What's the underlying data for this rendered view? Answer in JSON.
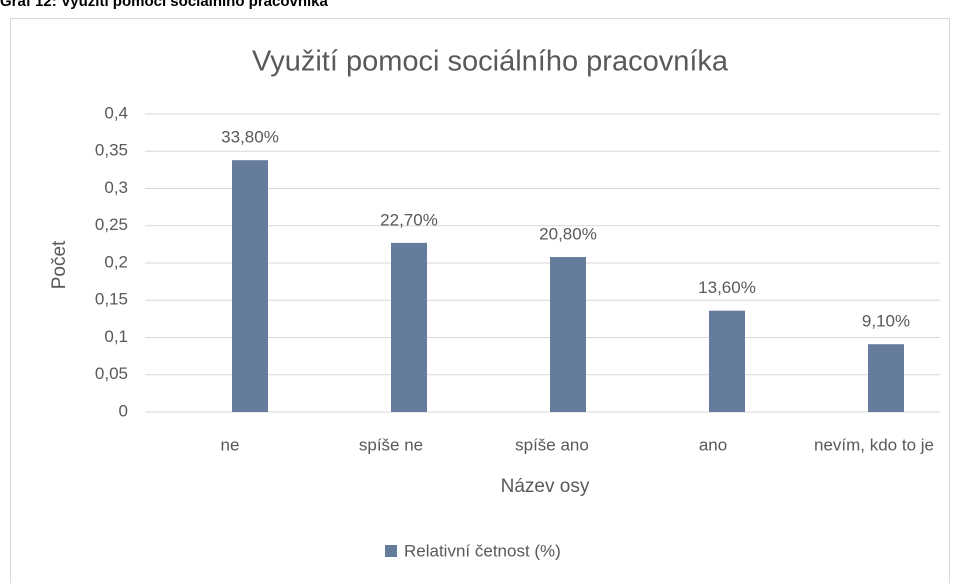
{
  "caption": "Graf 12: Využití pomoci sociálního pracovníka",
  "chart_data": {
    "type": "bar",
    "title": "Využití pomoci sociálního pracovníka",
    "x_label": "Název osy",
    "y_label": "Počet",
    "categories": [
      "ne",
      "spíše ne",
      "spíše ano",
      "ano",
      "nevím, kdo to je"
    ],
    "series": [
      {
        "name": "Relativní četnost (%)",
        "color": "#657c9c",
        "values": [
          0.338,
          0.227,
          0.208,
          0.136,
          0.091
        ],
        "value_labels": [
          "33,80%",
          "22,70%",
          "20,80%",
          "13,60%",
          "9,10%"
        ]
      }
    ],
    "ylim": [
      0,
      0.4
    ],
    "yticks": [
      0,
      {
        "value": 0.05,
        "label": "0,05"
      },
      {
        "value": 0.1,
        "label": "0,1"
      },
      {
        "value": 0.15,
        "label": "0,15"
      },
      {
        "value": 0.2,
        "label": "0,2"
      },
      {
        "value": 0.25,
        "label": "0,25"
      },
      {
        "value": 0.3,
        "label": "0,3"
      },
      {
        "value": 0.35,
        "label": "0,35"
      },
      {
        "value": 0.4,
        "label": "0,4"
      }
    ],
    "grid": true,
    "legend": "bottom"
  }
}
